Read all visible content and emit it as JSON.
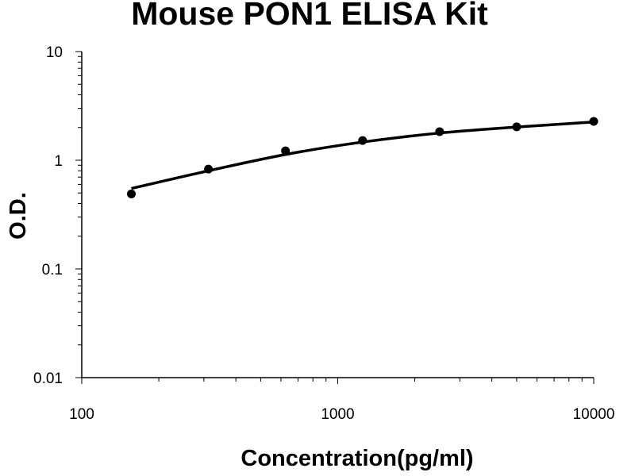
{
  "chart_data": {
    "type": "scatter",
    "title": "Mouse PON1 ELISA Kit",
    "xlabel": "Concentration(pg/ml)",
    "ylabel": "O.D.",
    "x_scale": "log",
    "y_scale": "log",
    "xlim": [
      100,
      10000
    ],
    "ylim": [
      0.01,
      10
    ],
    "x_ticks": [
      "100",
      "1000",
      "10000"
    ],
    "y_ticks": [
      "0.01",
      "0.1",
      "1",
      "10"
    ],
    "grid": false,
    "legend": "none",
    "series": [
      {
        "x": [
          156.25,
          312.5,
          625,
          1250,
          2500,
          5000,
          10000
        ],
        "y": [
          0.49,
          0.83,
          1.22,
          1.52,
          1.83,
          2.03,
          2.28
        ],
        "color": "#000000",
        "marker": "circle"
      }
    ],
    "fit_curve": {
      "x": [
        156.25,
        312.5,
        625,
        1250,
        2500,
        5000,
        10000
      ],
      "y": [
        0.55,
        0.8,
        1.13,
        1.47,
        1.78,
        2.02,
        2.25
      ],
      "color": "#000000"
    }
  }
}
